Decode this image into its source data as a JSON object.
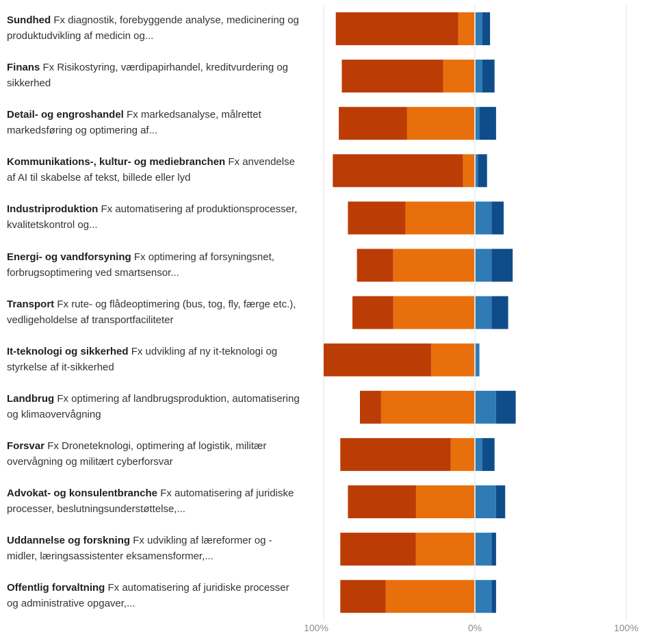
{
  "chart_data": {
    "type": "bar",
    "orientation": "horizontal",
    "stacked": "diverging",
    "xlim": [
      -100,
      100
    ],
    "grid": true,
    "x_tick_labels": [
      "100%",
      "0%",
      "100%"
    ],
    "colors": [
      "#bc3c06",
      "#e96f0c",
      "#2e7bb6",
      "#0f4c8a"
    ],
    "categories": [
      {
        "title": "Sundhed",
        "desc": "Fx diagnostik, forebyggende analyse, medicinering og produktudvikling af medicin og..."
      },
      {
        "title": "Finans",
        "desc": "Fx Risikostyring, værdipapirhandel, kreditvurdering og sikkerhed"
      },
      {
        "title": "Detail- og engroshandel",
        "desc": "Fx markedsanalyse, målrettet markedsføring og optimering af..."
      },
      {
        "title": "Kommunikations-, kultur- og mediebranchen",
        "desc": "Fx anvendelse af AI til skabelse af tekst, billede eller lyd"
      },
      {
        "title": "Industriproduktion",
        "desc": "Fx automatisering af produktionsprocesser, kvalitetskontrol og..."
      },
      {
        "title": "Energi- og vandforsyning",
        "desc": "Fx optimering af forsyningsnet, forbrugsoptimering ved smartsensor..."
      },
      {
        "title": "Transport",
        "desc": "Fx rute- og flådeoptimering (bus, tog, fly, færge etc.), vedligeholdelse af transportfaciliteter"
      },
      {
        "title": "It-teknologi og sikkerhed",
        "desc": "Fx udvikling af ny it-teknologi og styrkelse af it-sikkerhed"
      },
      {
        "title": "Landbrug",
        "desc": "Fx optimering af landbrugsproduktion, automatisering og klimaovervågning"
      },
      {
        "title": "Forsvar",
        "desc": "Fx Droneteknologi, optimering af logistik, militær overvågning og militært cyberforsvar"
      },
      {
        "title": "Advokat- og konsulentbranche",
        "desc": "Fx automatisering af juridiske processer, beslutningsunderstøttelse,..."
      },
      {
        "title": "Uddannelse og forskning",
        "desc": "Fx udvikling af læreformer og -midler, læringsassistenter eksamensformer,..."
      },
      {
        "title": "Offentlig forvaltning",
        "desc": "Fx automatisering af juridiske processer og administrative opgaver,..."
      }
    ],
    "series": [
      {
        "side": "negative",
        "color": "#bc3c06",
        "values": [
          81,
          67,
          45,
          86,
          38,
          24,
          27,
          71,
          14,
          73,
          45,
          50,
          30
        ]
      },
      {
        "side": "negative",
        "color": "#e96f0c",
        "values": [
          11,
          21,
          45,
          8,
          46,
          54,
          54,
          29,
          62,
          16,
          39,
          39,
          59
        ]
      },
      {
        "side": "positive",
        "color": "#2e7bb6",
        "values": [
          5,
          5,
          3,
          2,
          11,
          11,
          11,
          3,
          14,
          5,
          14,
          11,
          11
        ]
      },
      {
        "side": "positive",
        "color": "#0f4c8a",
        "values": [
          5,
          8,
          11,
          6,
          8,
          14,
          11,
          0,
          13,
          8,
          6,
          3,
          3
        ]
      }
    ]
  }
}
